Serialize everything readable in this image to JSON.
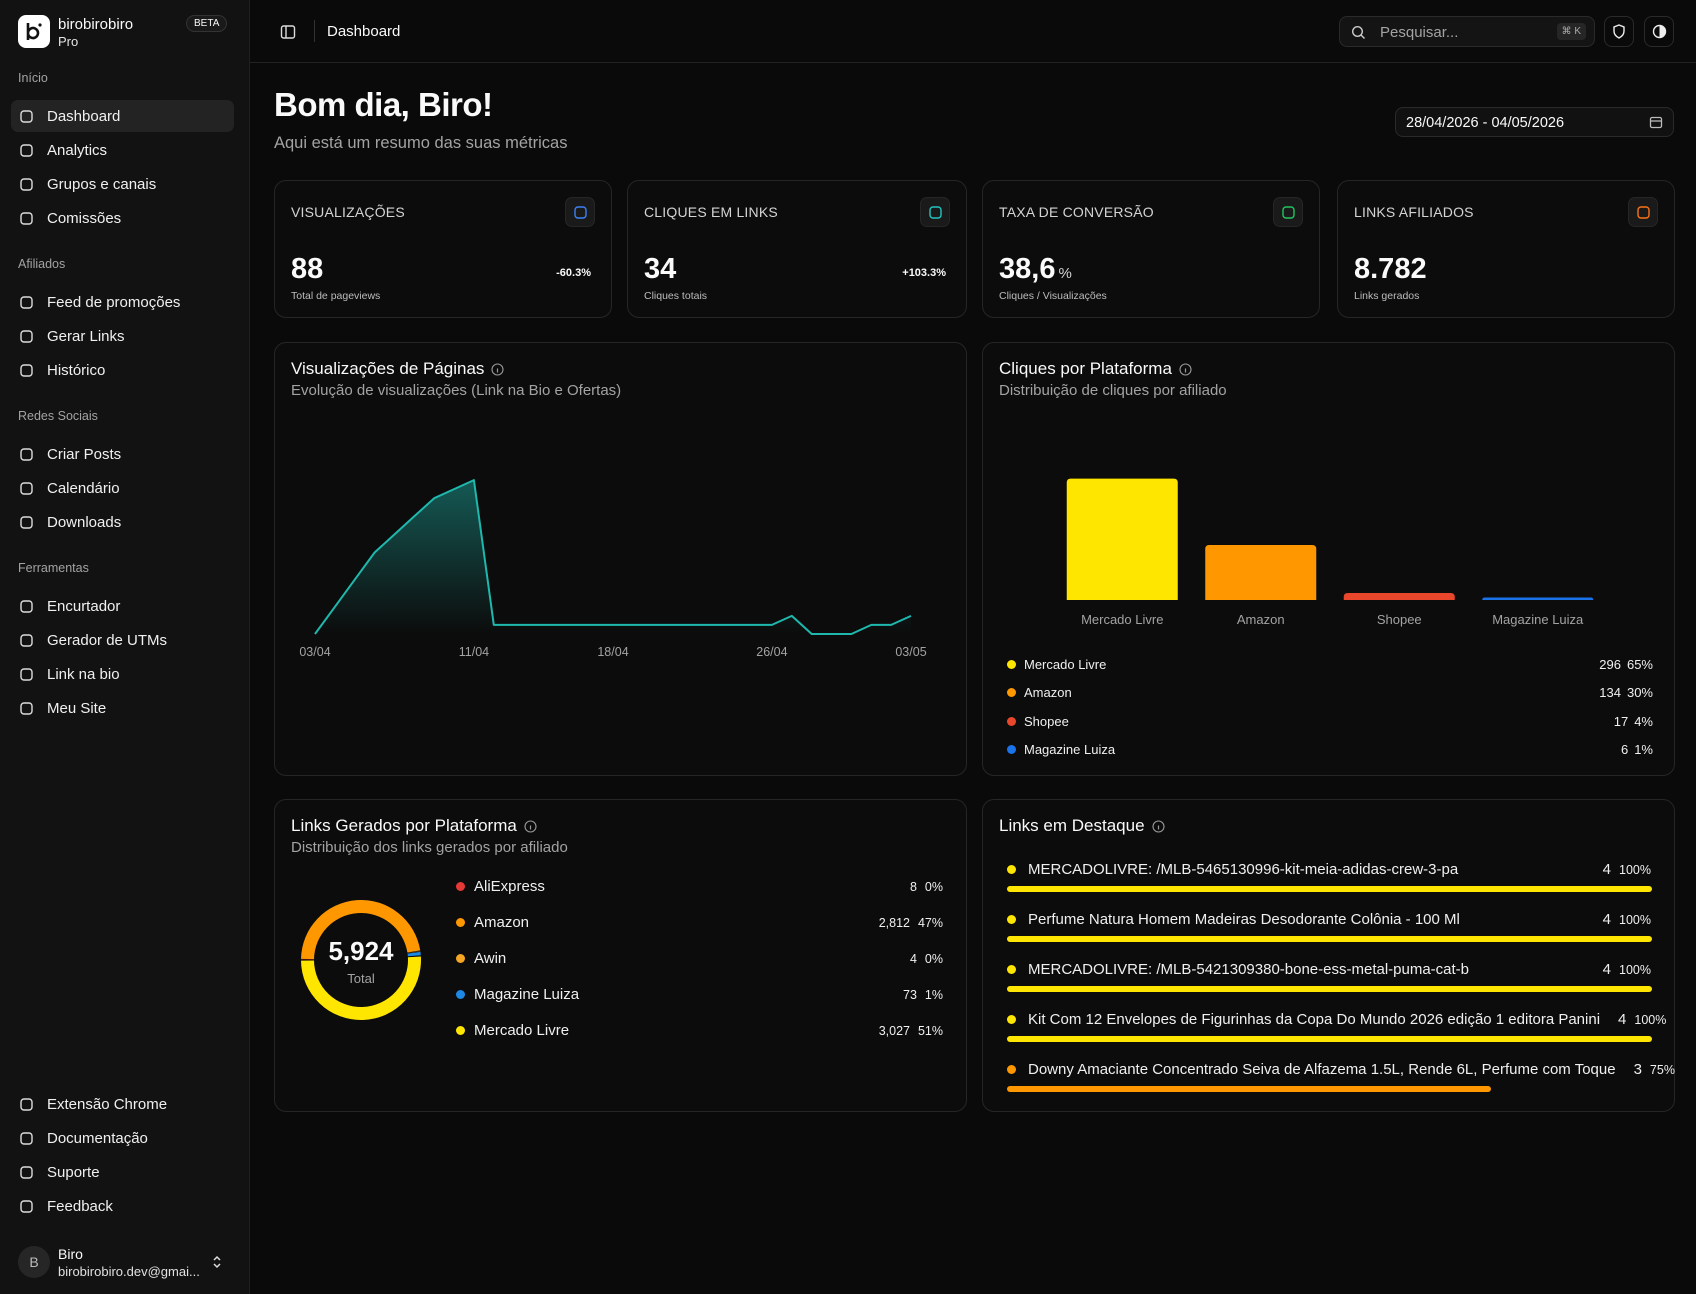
{
  "sidebar": {
    "brand": "birobirobiro",
    "plan": "Pro",
    "badge": "BETA",
    "sections": [
      {
        "title": "Início",
        "items": [
          "Dashboard",
          "Analytics",
          "Grupos e canais",
          "Comissões"
        ]
      },
      {
        "title": "Afiliados",
        "items": [
          "Feed de promoções",
          "Gerar Links",
          "Histórico"
        ]
      },
      {
        "title": "Redes Sociais",
        "items": [
          "Criar Posts",
          "Calendário",
          "Downloads"
        ]
      },
      {
        "title": "Ferramentas",
        "items": [
          "Encurtador",
          "Gerador de UTMs",
          "Link na bio",
          "Meu Site"
        ]
      }
    ],
    "footer_items": [
      "Extensão Chrome",
      "Documentação",
      "Suporte",
      "Feedback"
    ],
    "user": {
      "avatar": "B",
      "name": "Biro",
      "email": "birobirobiro.dev@gmai..."
    }
  },
  "header": {
    "breadcrumb": "Dashboard",
    "search_placeholder": "Pesquisar...",
    "shortcut": "⌘ K"
  },
  "greeting": {
    "title": "Bom dia, Biro!",
    "subtitle": "Aqui está um resumo das suas métricas",
    "date_range": "28/04/2026 - 04/05/2026"
  },
  "kpis": [
    {
      "label": "VISUALIZAÇÕES",
      "value": "88",
      "delta": "-60.3%",
      "caption": "Total de pageviews",
      "color": "#3b82f6"
    },
    {
      "label": "CLIQUES EM LINKS",
      "value": "34",
      "delta": "+103.3%",
      "caption": "Cliques totais",
      "color": "#22c5c0"
    },
    {
      "label": "TAXA DE CONVERSÃO",
      "value": "38,6",
      "unit": "%",
      "caption": "Cliques / Visualizações",
      "color": "#22c55e"
    },
    {
      "label": "LINKS AFILIADOS",
      "value": "8.782",
      "caption": "Links gerados",
      "color": "#f97316"
    }
  ],
  "chart_data": [
    {
      "type": "line",
      "title": "Visualizações de Páginas",
      "subtitle": "Evolução de visualizações (Link na Bio e Ofertas)",
      "categories": [
        "03/04",
        null,
        null,
        null,
        null,
        null,
        null,
        null,
        "11/04",
        null,
        null,
        null,
        null,
        null,
        null,
        "18/04",
        null,
        null,
        null,
        null,
        null,
        null,
        null,
        "26/04",
        null,
        null,
        null,
        null,
        null,
        null,
        "03/05"
      ],
      "values": [
        0,
        3,
        6,
        9,
        11,
        13,
        15,
        16,
        17,
        1,
        1,
        1,
        1,
        1,
        1,
        1,
        1,
        1,
        1,
        1,
        1,
        1,
        1,
        1,
        2,
        0,
        0,
        0,
        1,
        1,
        2
      ],
      "color": "#1fb8ad",
      "ylim": [
        0,
        18
      ]
    },
    {
      "type": "bar",
      "title": "Cliques por Plataforma",
      "subtitle": "Distribuição de cliques por afiliado",
      "categories": [
        "Mercado Livre",
        "Amazon",
        "Shopee",
        "Magazine Luiza"
      ],
      "values": [
        296,
        134,
        17,
        6
      ],
      "shares": [
        "65%",
        "30%",
        "4%",
        "1%"
      ],
      "colors": [
        "#ffe600",
        "#ff9800",
        "#e8472c",
        "#1a73e8"
      ],
      "ylim": [
        0,
        300
      ]
    },
    {
      "type": "donut",
      "title": "Links Gerados por Plataforma",
      "subtitle": "Distribuição dos links gerados por afiliado",
      "categories": [
        "AliExpress",
        "Amazon",
        "Awin",
        "Magazine Luiza",
        "Mercado Livre"
      ],
      "values": [
        8,
        2812,
        4,
        73,
        3027
      ],
      "value_labels": [
        "8",
        "2,812",
        "4",
        "73",
        "3,027"
      ],
      "shares": [
        "0%",
        "47%",
        "0%",
        "1%",
        "51%"
      ],
      "colors": [
        "#e53935",
        "#ff9800",
        "#f5a623",
        "#1e88e5",
        "#ffe600"
      ],
      "total": "5,924",
      "total_label": "Total"
    }
  ],
  "top_links": {
    "title": "Links em Destaque",
    "items": [
      {
        "name": "MERCADOLIVRE: /MLB-5465130996-kit-meia-adidas-crew-3-pa",
        "count": "4",
        "share": 100,
        "share_label": "100%",
        "color": "#ffe600"
      },
      {
        "name": "Perfume Natura Homem Madeiras Desodorante Colônia - 100 Ml",
        "count": "4",
        "share": 100,
        "share_label": "100%",
        "color": "#ffe600"
      },
      {
        "name": "MERCADOLIVRE: /MLB-5421309380-bone-ess-metal-puma-cat-b",
        "count": "4",
        "share": 100,
        "share_label": "100%",
        "color": "#ffe600"
      },
      {
        "name": "Kit Com 12 Envelopes de Figurinhas da Copa Do Mundo 2026 edição 1 editora Panini",
        "count": "4",
        "share": 100,
        "share_label": "100%",
        "color": "#ffe600"
      },
      {
        "name": "Downy Amaciante Concentrado Seiva de Alfazema 1.5L, Rende 6L, Perfume com Toque",
        "count": "3",
        "share": 75,
        "share_label": "75%",
        "color": "#ff9800"
      }
    ]
  }
}
